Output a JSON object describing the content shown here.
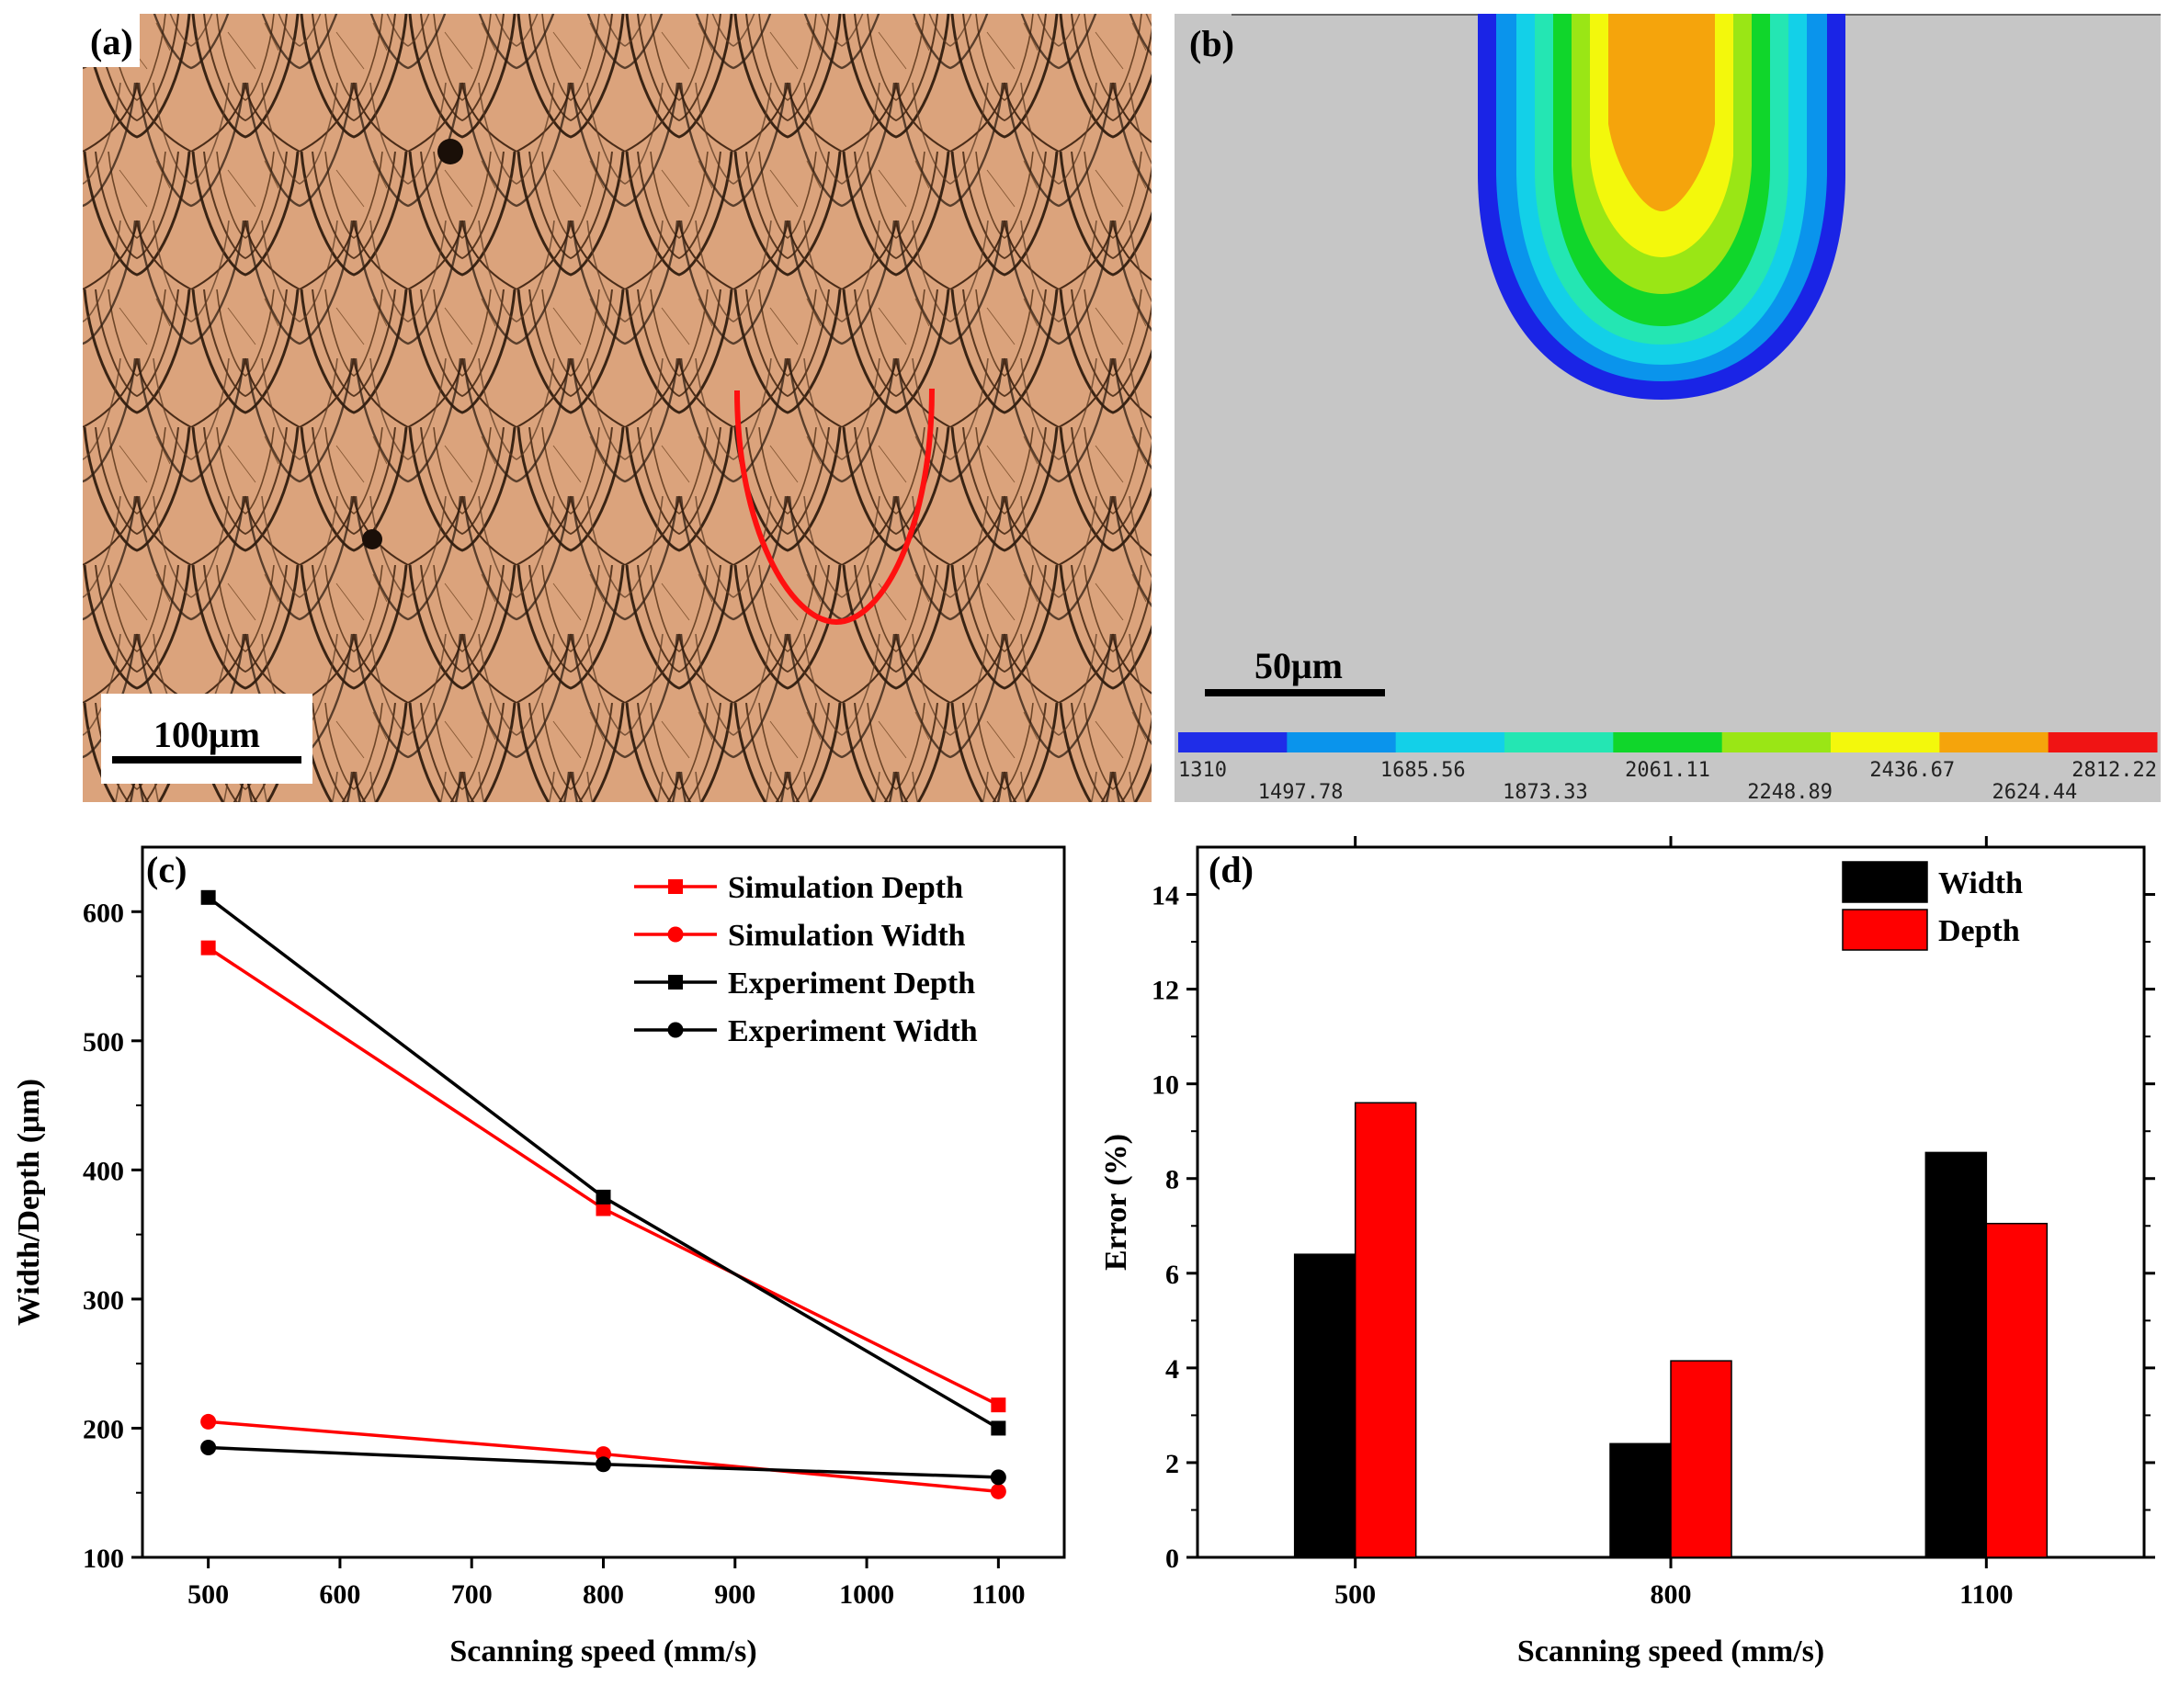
{
  "panel_a": {
    "label": "(a)",
    "scalebar": "100μm"
  },
  "panel_b": {
    "label": "(b)",
    "scalebar": "50μm",
    "colorbar_labels": [
      "1310",
      "1497.78",
      "1685.56",
      "1873.33",
      "2061.11",
      "2248.89",
      "2436.67",
      "2624.44",
      "2812.22"
    ],
    "colorbar_colors": [
      "#1f2de8",
      "#0a94ec",
      "#13d0e8",
      "#24e6b3",
      "#10d62b",
      "#9ae615",
      "#f3f80c",
      "#f5a40c",
      "#f01414"
    ],
    "background_color": "#c6c6c6"
  },
  "chart_data": [
    {
      "type": "line",
      "panel_label": "(c)",
      "xlabel": "Scanning speed (mm/s)",
      "ylabel": "Width/Depth (μm)",
      "xlim": [
        450,
        1150
      ],
      "ylim": [
        100,
        650
      ],
      "xticks": [
        500,
        600,
        700,
        800,
        900,
        1000,
        1100
      ],
      "yticks": [
        100,
        200,
        300,
        400,
        500,
        600
      ],
      "grid": false,
      "legend_position": "top-right",
      "series": [
        {
          "name": "Simulation Depth",
          "color": "#ff0000",
          "marker": "square",
          "x": [
            500,
            800,
            1100
          ],
          "y": [
            572,
            370,
            218
          ]
        },
        {
          "name": "Simulation Width",
          "color": "#ff0000",
          "marker": "circle",
          "x": [
            500,
            800,
            1100
          ],
          "y": [
            205,
            180,
            151
          ]
        },
        {
          "name": "Experiment Depth",
          "color": "#000000",
          "marker": "square",
          "x": [
            500,
            800,
            1100
          ],
          "y": [
            611,
            379,
            200
          ]
        },
        {
          "name": "Experiment Width",
          "color": "#000000",
          "marker": "circle",
          "x": [
            500,
            800,
            1100
          ],
          "y": [
            185,
            172,
            162
          ]
        }
      ]
    },
    {
      "type": "bar",
      "panel_label": "(d)",
      "xlabel": "Scanning speed (mm/s)",
      "ylabel": "Error (%)",
      "categories": [
        "500",
        "800",
        "1100"
      ],
      "ylim": [
        0,
        15
      ],
      "yticks": [
        0,
        2,
        4,
        6,
        8,
        10,
        12,
        14
      ],
      "grid": false,
      "legend_position": "top-right",
      "series": [
        {
          "name": "Width",
          "color": "#000000",
          "values": [
            6.4,
            2.4,
            8.55
          ]
        },
        {
          "name": "Depth",
          "color": "#ff0000",
          "values": [
            9.6,
            4.15,
            7.05
          ]
        }
      ]
    }
  ]
}
